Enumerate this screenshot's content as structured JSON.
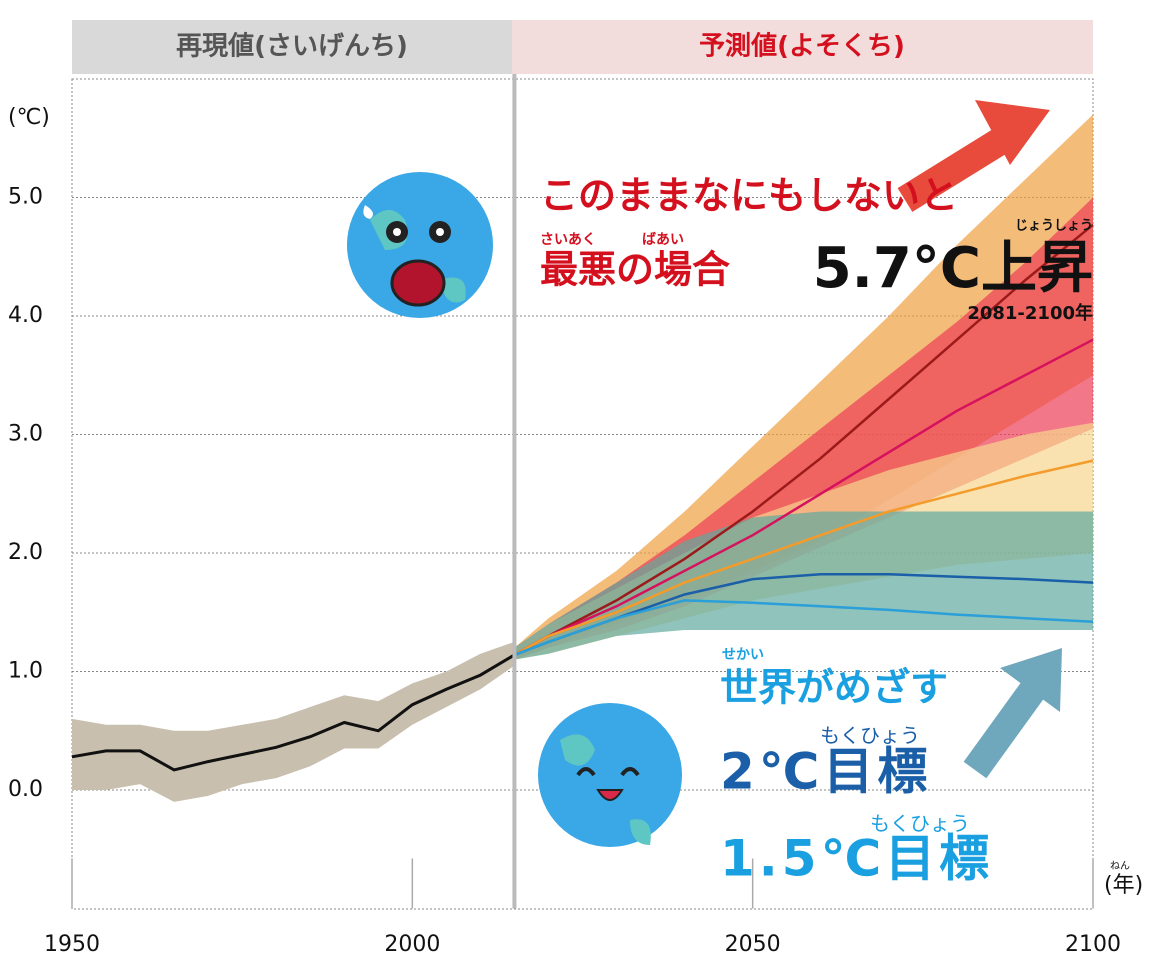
{
  "chart_data": {
    "type": "line",
    "header_left": "再現値(さいげんち)",
    "header_right": "予測値(よそくち)",
    "y_unit": "(℃)",
    "x_unit": "(年)",
    "x_unit_ruby": "ねん",
    "xlim": [
      1950,
      2100
    ],
    "ylim": [
      -1,
      6
    ],
    "xticks": [
      1950,
      2000,
      2050,
      2100
    ],
    "yticks": [
      {
        "value": 0,
        "label": "0.0"
      },
      {
        "value": 1,
        "label": "1.0"
      },
      {
        "value": 2,
        "label": "2.0"
      },
      {
        "value": 3,
        "label": "3.0"
      },
      {
        "value": 4,
        "label": "4.0"
      },
      {
        "value": 5,
        "label": "5.0"
      }
    ],
    "grid": true,
    "divider_x": 2015,
    "annotations": {
      "headline": "このままなにもしないと",
      "ruby_saiaku": "さいあく",
      "ruby_baai": "ばあい",
      "worst_case": "最悪の場合",
      "rise": "5.7°C上昇",
      "ruby_joushou": "じょうしょう",
      "period": "2081-2100年",
      "ruby_sekai": "せかい",
      "world_goal": "世界がめざす",
      "ruby_mokuhyou_2": "もくひょう",
      "goal_2": "2℃目標",
      "ruby_mokuhyou_15": "もくひょう",
      "goal_15": "1.5℃目標"
    },
    "historical": {
      "color": "#111111",
      "band_color": "#c9bfae",
      "x": [
        1950,
        1955,
        1960,
        1965,
        1970,
        1975,
        1980,
        1985,
        1990,
        1995,
        2000,
        2005,
        2010,
        2015
      ],
      "values": [
        0.28,
        0.33,
        0.33,
        0.17,
        0.24,
        0.3,
        0.36,
        0.45,
        0.57,
        0.5,
        0.72,
        0.85,
        0.97,
        1.14
      ],
      "lower": [
        0.0,
        0.0,
        0.05,
        -0.1,
        -0.05,
        0.05,
        0.1,
        0.2,
        0.35,
        0.35,
        0.55,
        0.7,
        0.85,
        1.05
      ],
      "upper": [
        0.6,
        0.55,
        0.55,
        0.5,
        0.5,
        0.55,
        0.6,
        0.7,
        0.8,
        0.75,
        0.9,
        1.0,
        1.15,
        1.25
      ]
    },
    "x": [
      2015,
      2020,
      2030,
      2040,
      2050,
      2060,
      2070,
      2080,
      2090,
      2100
    ],
    "series": [
      {
        "color": "#9b1b1b",
        "band_color": "#f0a040",
        "values": [
          1.14,
          1.3,
          1.6,
          1.95,
          2.35,
          2.8,
          3.3,
          3.8,
          4.3,
          4.77
        ],
        "lower": [
          1.1,
          1.2,
          1.4,
          1.6,
          1.85,
          2.1,
          2.45,
          2.8,
          3.15,
          3.5
        ],
        "upper": [
          1.2,
          1.45,
          1.85,
          2.35,
          2.9,
          3.45,
          4.0,
          4.6,
          5.15,
          5.7
        ]
      },
      {
        "color": "#d6115d",
        "band_color": "#ec3d55",
        "values": [
          1.14,
          1.3,
          1.55,
          1.85,
          2.15,
          2.5,
          2.85,
          3.2,
          3.5,
          3.8
        ],
        "lower": [
          1.1,
          1.2,
          1.35,
          1.55,
          1.8,
          2.05,
          2.3,
          2.55,
          2.8,
          3.05
        ],
        "upper": [
          1.2,
          1.4,
          1.75,
          2.15,
          2.6,
          3.05,
          3.5,
          3.95,
          4.45,
          5.0
        ]
      },
      {
        "color": "#f39b2b",
        "band_color": "#f6d68e",
        "values": [
          1.14,
          1.3,
          1.5,
          1.75,
          1.95,
          2.15,
          2.35,
          2.5,
          2.65,
          2.78
        ],
        "lower": [
          1.1,
          1.15,
          1.3,
          1.45,
          1.6,
          1.7,
          1.8,
          1.9,
          1.95,
          2.0
        ],
        "upper": [
          1.2,
          1.4,
          1.7,
          2.0,
          2.3,
          2.5,
          2.7,
          2.85,
          3.0,
          3.1
        ]
      },
      {
        "color": "#1a5fa8",
        "band_color": "#5fa9a0",
        "values": [
          1.14,
          1.25,
          1.45,
          1.65,
          1.78,
          1.82,
          1.82,
          1.8,
          1.78,
          1.75
        ],
        "lower": [
          1.1,
          1.15,
          1.3,
          1.35,
          1.35,
          1.35,
          1.35,
          1.35,
          1.35,
          1.35
        ],
        "upper": [
          1.2,
          1.4,
          1.75,
          2.1,
          2.3,
          2.35,
          2.35,
          2.35,
          2.35,
          2.35
        ]
      },
      {
        "color": "#2a9fd8",
        "values": [
          1.14,
          1.25,
          1.45,
          1.6,
          1.58,
          1.55,
          1.52,
          1.48,
          1.45,
          1.42
        ]
      }
    ]
  }
}
